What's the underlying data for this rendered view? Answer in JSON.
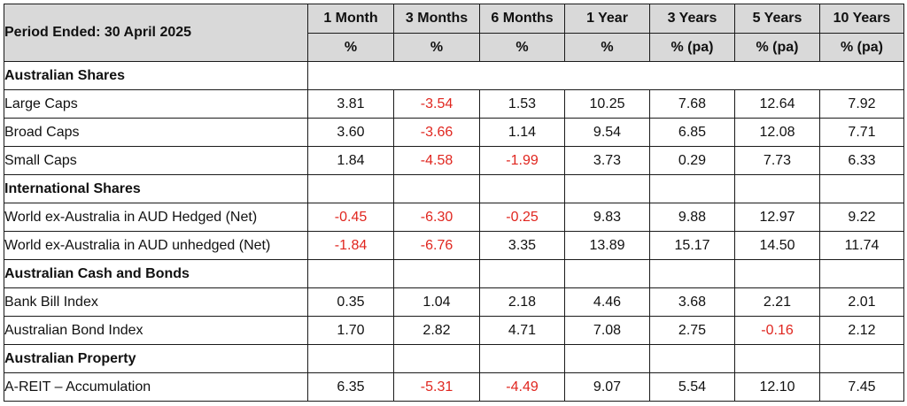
{
  "table": {
    "period_label": "Period Ended: 30 April 2025",
    "columns": [
      {
        "label": "1 Month",
        "unit": "%"
      },
      {
        "label": "3 Months",
        "unit": "%"
      },
      {
        "label": "6 Months",
        "unit": "%"
      },
      {
        "label": "1 Year",
        "unit": "%"
      },
      {
        "label": "3 Years",
        "unit": "% (pa)"
      },
      {
        "label": "5 Years",
        "unit": "% (pa)"
      },
      {
        "label": "10 Years",
        "unit": "% (pa)"
      }
    ],
    "sections": [
      {
        "title": "Australian Shares",
        "layout": "wide",
        "rows": [
          {
            "label": "Large Caps",
            "values": [
              "3.81",
              "-3.54",
              "1.53",
              "10.25",
              "7.68",
              "12.64",
              "7.92"
            ]
          },
          {
            "label": "Broad Caps",
            "values": [
              "3.60",
              "-3.66",
              "1.14",
              "9.54",
              "6.85",
              "12.08",
              "7.71"
            ]
          },
          {
            "label": "Small Caps",
            "values": [
              "1.84",
              "-4.58",
              "-1.99",
              "3.73",
              "0.29",
              "7.73",
              "6.33"
            ]
          }
        ]
      },
      {
        "title": "International Shares",
        "layout": "split",
        "rows": [
          {
            "label": "World ex-Australia in AUD Hedged (Net)",
            "values": [
              "-0.45",
              "-6.30",
              "-0.25",
              "9.83",
              "9.88",
              "12.97",
              "9.22"
            ]
          },
          {
            "label": "World ex-Australia in AUD unhedged (Net)",
            "values": [
              "-1.84",
              "-6.76",
              "3.35",
              "13.89",
              "15.17",
              "14.50",
              "11.74"
            ]
          }
        ]
      },
      {
        "title": "Australian Cash and Bonds",
        "layout": "split",
        "rows": [
          {
            "label": "Bank Bill Index",
            "values": [
              "0.35",
              "1.04",
              "2.18",
              "4.46",
              "3.68",
              "2.21",
              "2.01"
            ]
          },
          {
            "label": "Australian Bond Index",
            "values": [
              "1.70",
              "2.82",
              "4.71",
              "7.08",
              "2.75",
              "-0.16",
              "2.12"
            ]
          }
        ]
      },
      {
        "title": "Australian Property",
        "layout": "split",
        "rows": [
          {
            "label": "A-REIT – Accumulation",
            "values": [
              "6.35",
              "-5.31",
              "-4.49",
              "9.07",
              "5.54",
              "12.10",
              "7.45"
            ]
          }
        ]
      }
    ],
    "colors": {
      "header_bg": "#d9d9d9",
      "negative": "#e0261f",
      "positive": "#111111",
      "border": "#1a1a1a"
    }
  }
}
